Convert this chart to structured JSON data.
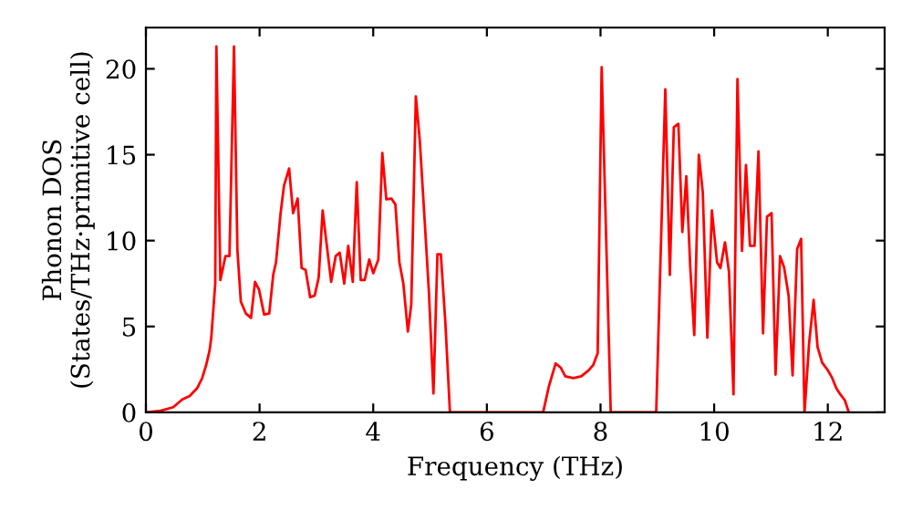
{
  "chart_data": {
    "type": "line",
    "xlabel": "Frequency (THz)",
    "ylabel": "Phonon DOS\n(States/THz·primitive cell)",
    "xlim": [
      0,
      13
    ],
    "ylim": [
      0,
      22.4
    ],
    "xticks": [
      0,
      2,
      4,
      6,
      8,
      10,
      12
    ],
    "yticks": [
      0,
      5,
      10,
      15,
      20
    ],
    "grid": false,
    "marker": "none",
    "line_style": "solid",
    "series": [
      {
        "color": "#ff0000",
        "x": [
          0,
          0.26,
          0.48,
          0.64,
          0.77,
          0.9,
          0.99,
          1.06,
          1.12,
          1.15,
          1.18,
          1.22,
          1.24,
          1.31,
          1.4,
          1.47,
          1.55,
          1.61,
          1.67,
          1.76,
          1.85,
          1.92,
          1.99,
          2.08,
          2.17,
          2.24,
          2.29,
          2.37,
          2.43,
          2.52,
          2.59,
          2.67,
          2.74,
          2.81,
          2.89,
          2.97,
          3.04,
          3.11,
          3.18,
          3.26,
          3.34,
          3.41,
          3.49,
          3.56,
          3.64,
          3.71,
          3.78,
          3.85,
          3.93,
          4.0,
          4.09,
          4.16,
          4.23,
          4.32,
          4.39,
          4.46,
          4.53,
          4.61,
          4.67,
          4.75,
          4.82,
          4.91,
          4.98,
          5.06,
          5.13,
          5.19,
          5.27,
          5.35,
          6.99,
          7.09,
          7.21,
          7.3,
          7.38,
          7.52,
          7.66,
          7.79,
          7.87,
          7.95,
          8.02,
          8.18,
          8.98,
          9.14,
          9.22,
          9.29,
          9.37,
          9.44,
          9.51,
          9.58,
          9.65,
          9.73,
          9.8,
          9.88,
          9.96,
          10.05,
          10.11,
          10.19,
          10.26,
          10.34,
          10.41,
          10.49,
          10.56,
          10.63,
          10.71,
          10.78,
          10.86,
          10.93,
          11.01,
          11.08,
          11.16,
          11.23,
          11.31,
          11.38,
          11.46,
          11.53,
          11.59,
          11.67,
          11.75,
          11.82,
          11.9,
          12.0,
          12.07,
          12.15,
          12.22,
          12.3,
          12.37
        ],
        "values": [
          0,
          0.1,
          0.3,
          0.75,
          0.95,
          1.4,
          2.0,
          2.75,
          3.6,
          4.35,
          5.7,
          7.5,
          21.3,
          7.7,
          9.1,
          9.1,
          21.3,
          9.45,
          6.45,
          5.75,
          5.5,
          7.6,
          7.15,
          5.7,
          5.75,
          8.0,
          8.75,
          11.6,
          13.2,
          14.2,
          11.6,
          12.45,
          8.4,
          8.3,
          6.7,
          6.8,
          7.85,
          11.75,
          9.8,
          7.6,
          9.1,
          9.3,
          7.5,
          9.7,
          7.6,
          13.4,
          7.7,
          7.7,
          8.9,
          8.1,
          8.9,
          15.1,
          12.4,
          12.45,
          12.1,
          8.75,
          7.5,
          4.7,
          6.3,
          18.4,
          15.8,
          10.9,
          7.0,
          1.1,
          9.2,
          9.2,
          5.2,
          0,
          0,
          1.5,
          2.85,
          2.6,
          2.1,
          2.0,
          2.1,
          2.45,
          2.75,
          3.45,
          20.1,
          0,
          0,
          18.8,
          8.0,
          16.6,
          16.8,
          10.5,
          13.75,
          8.4,
          4.5,
          15.0,
          12.8,
          4.35,
          11.75,
          8.75,
          8.4,
          9.9,
          8.2,
          1.05,
          19.4,
          9.4,
          14.4,
          9.7,
          9.7,
          15.2,
          4.6,
          11.4,
          11.6,
          2.2,
          9.1,
          8.45,
          6.8,
          2.15,
          9.5,
          10.1,
          0,
          4.0,
          6.55,
          3.8,
          2.9,
          2.45,
          2.05,
          1.4,
          1.05,
          0.7,
          0
        ]
      }
    ]
  }
}
